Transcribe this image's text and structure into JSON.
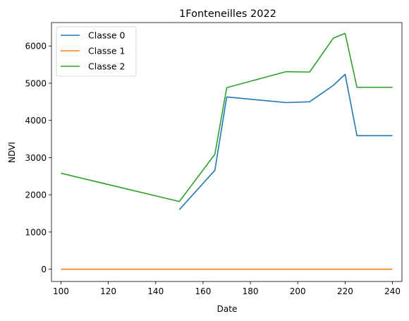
{
  "chart_data": {
    "type": "line",
    "title": "1Fonteneilles 2022",
    "xlabel": "Date",
    "ylabel": "NDVI",
    "xlim": [
      96,
      244
    ],
    "ylim": [
      -330,
      6630
    ],
    "xticks": [
      100,
      120,
      140,
      160,
      180,
      200,
      220,
      240
    ],
    "yticks": [
      0,
      1000,
      2000,
      3000,
      4000,
      5000,
      6000
    ],
    "grid": false,
    "legend_position": "top-left",
    "series": [
      {
        "name": "Classe 0",
        "color": "#1f77b4",
        "x": [
          150,
          165,
          170,
          195,
          205,
          215,
          220,
          225,
          240
        ],
        "y": [
          1600,
          2660,
          4630,
          4480,
          4500,
          4940,
          5240,
          3590,
          3590
        ]
      },
      {
        "name": "Classe 1",
        "color": "#ff7f0e",
        "x": [
          100,
          150,
          165,
          170,
          195,
          205,
          215,
          220,
          225,
          240
        ],
        "y": [
          0,
          0,
          0,
          0,
          0,
          0,
          0,
          0,
          0,
          0
        ]
      },
      {
        "name": "Classe 2",
        "color": "#2ca02c",
        "x": [
          100,
          150,
          165,
          170,
          195,
          205,
          215,
          220,
          225,
          240
        ],
        "y": [
          2580,
          1820,
          3090,
          4880,
          5310,
          5300,
          6210,
          6340,
          4890,
          4890
        ]
      }
    ]
  }
}
